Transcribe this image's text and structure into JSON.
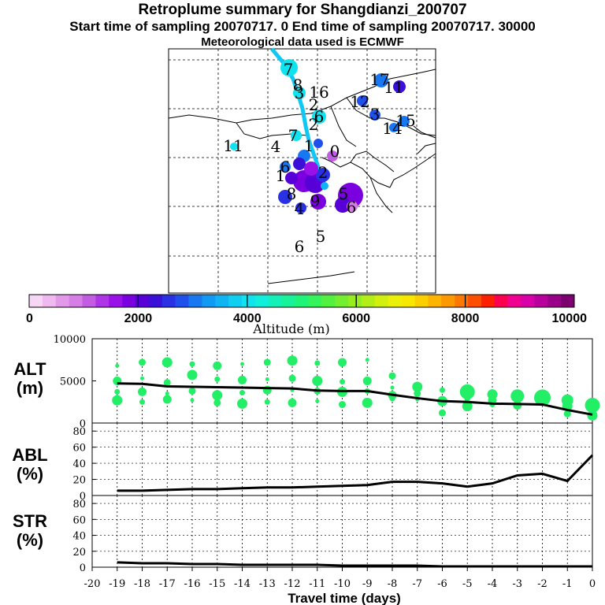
{
  "header": {
    "title": "Retroplume summary for Shangdianzi_200707",
    "subtitle": "Start time of sampling 20070717.    0     End time of sampling 20070717. 30000",
    "met_line": "Meteorological data used is ECMWF"
  },
  "colorbar": {
    "ticks": [
      "0",
      "2000",
      "4000",
      "6000",
      "8000",
      "10000"
    ],
    "label": "Altitude (m)",
    "colors": [
      "#f5d6f5",
      "#efb8ef",
      "#e29ae8",
      "#d67ee6",
      "#c25de3",
      "#ae35e6",
      "#9a10e8",
      "#7a00e0",
      "#5800d8",
      "#3a10d8",
      "#2a30e4",
      "#2050ec",
      "#1878f2",
      "#109af4",
      "#10b4f4",
      "#10cef2",
      "#10e2ee",
      "#10eedc",
      "#14f0b8",
      "#18f298",
      "#20f478",
      "#34f45c",
      "#54f040",
      "#74ee30",
      "#94ee20",
      "#b4ee18",
      "#d2f010",
      "#ecf008",
      "#f8e800",
      "#fcd000",
      "#fcb400",
      "#fc9800",
      "#fc7800",
      "#fc5000",
      "#fc2000",
      "#fc0050",
      "#f00090",
      "#d800a8",
      "#b8009c",
      "#980088",
      "#7c0070"
    ]
  },
  "map": {
    "labels": [
      {
        "text": "7"
      },
      {
        "text": "8"
      },
      {
        "text": "3"
      },
      {
        "text": "16"
      },
      {
        "text": "2"
      },
      {
        "text": "6"
      },
      {
        "text": "7"
      },
      {
        "text": "2"
      },
      {
        "text": "11"
      },
      {
        "text": "4"
      },
      {
        "text": "1"
      },
      {
        "text": "0"
      },
      {
        "text": "6"
      },
      {
        "text": "1"
      },
      {
        "text": "2"
      },
      {
        "text": "8"
      },
      {
        "text": "9"
      },
      {
        "text": "5"
      },
      {
        "text": "6"
      },
      {
        "text": "4"
      },
      {
        "text": "6"
      },
      {
        "text": "5"
      },
      {
        "text": "17"
      },
      {
        "text": "11"
      },
      {
        "text": "12"
      },
      {
        "text": "3"
      },
      {
        "text": "15"
      },
      {
        "text": "14"
      }
    ]
  },
  "chart_data": {
    "type": "line",
    "x": [
      -19,
      -18,
      -17,
      -16,
      -15,
      -14,
      -13,
      -12,
      -11,
      -10,
      -9,
      -8,
      -7,
      -6,
      -5,
      -4,
      -3,
      -2,
      -1,
      0
    ],
    "xlabel": "Travel time (days)",
    "xticks": [
      "-20",
      "-19",
      "-18",
      "-17",
      "-16",
      "-15",
      "-14",
      "-13",
      "-12",
      "-11",
      "-10",
      "-9",
      "-8",
      "-7",
      "-6",
      "-5",
      "-4",
      "-3",
      "-2",
      "-1",
      "0"
    ],
    "xlim": [
      -20,
      0
    ],
    "panels": [
      {
        "name": "ALT",
        "label_line1": "ALT",
        "label_line2": "(m)",
        "ylim": [
          0,
          10000
        ],
        "yticks": [
          "10000",
          "5000",
          "0"
        ],
        "mean_line": [
          4700,
          4650,
          4350,
          4300,
          4250,
          4200,
          4150,
          4100,
          3850,
          3800,
          3800,
          3350,
          2950,
          2600,
          2500,
          2300,
          2250,
          2200,
          1550,
          1000
        ],
        "clusters": [
          [
            6800,
            5000,
            3700,
            2700
          ],
          [
            7200,
            5300,
            3700,
            2500
          ],
          [
            7200,
            4800,
            3500,
            2800
          ],
          [
            7000,
            5700,
            3800,
            2700
          ],
          [
            6800,
            5200,
            3300,
            2400
          ],
          [
            7000,
            5100,
            3600,
            2300
          ],
          [
            7200,
            5200,
            3900,
            2500
          ],
          [
            7400,
            5300,
            3900,
            2400
          ],
          [
            7100,
            5000,
            3800,
            2600
          ],
          [
            7200,
            4900,
            3700,
            2200
          ],
          [
            7500,
            5000,
            3800,
            2400
          ],
          [
            5600,
            4200,
            3300,
            2900
          ],
          [
            4300,
            3500,
            2800
          ],
          [
            3900,
            2600,
            1200
          ],
          [
            3700,
            2800,
            2000
          ],
          [
            3400,
            2700,
            2200
          ],
          [
            3200,
            2600,
            2100
          ],
          [
            3000,
            2600,
            2300
          ],
          [
            2700,
            2000,
            1100
          ],
          [
            2100,
            1300,
            900
          ]
        ]
      },
      {
        "name": "ABL",
        "label_line1": "ABL",
        "label_line2": "(%)",
        "ylim": [
          0,
          90
        ],
        "yticks": [
          "80",
          "60",
          "40",
          "20",
          "0"
        ],
        "values": [
          6,
          6,
          7,
          8,
          8,
          9,
          10,
          10,
          11,
          12,
          13,
          17,
          17,
          15,
          11,
          15,
          25,
          27,
          18,
          50
        ]
      },
      {
        "name": "STR",
        "label_line1": "STR",
        "label_line2": "(%)",
        "ylim": [
          0,
          90
        ],
        "yticks": [
          "80",
          "60",
          "40",
          "20",
          "0"
        ],
        "values": [
          6,
          5,
          5,
          4,
          4,
          3,
          3,
          3,
          3,
          2,
          2,
          2,
          2,
          1,
          1,
          1,
          1,
          1,
          1,
          1
        ]
      }
    ]
  }
}
